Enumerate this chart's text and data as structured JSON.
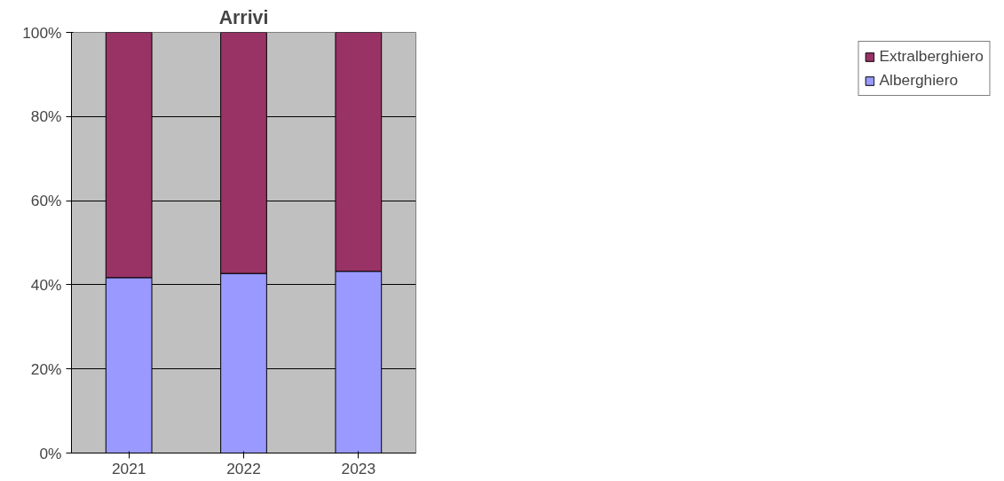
{
  "chart_data": {
    "type": "bar",
    "title": "Arrivi",
    "stacked": true,
    "categories": [
      "2021",
      "2022",
      "2023"
    ],
    "series": [
      {
        "name": "Alberghiero",
        "color": "#9999ff",
        "values": [
          41.7,
          42.7,
          43.2
        ]
      },
      {
        "name": "Extralberghiero",
        "color": "#993366",
        "values": [
          58.3,
          57.3,
          56.8
        ]
      }
    ],
    "ylim": [
      0,
      100
    ],
    "yticks": [
      {
        "value": 0,
        "label": "0%"
      },
      {
        "value": 20,
        "label": "20%"
      },
      {
        "value": 40,
        "label": "40%"
      },
      {
        "value": 60,
        "label": "60%"
      },
      {
        "value": 80,
        "label": "80%"
      },
      {
        "value": 100,
        "label": "100%"
      }
    ],
    "grid": "y",
    "legend": "right"
  }
}
